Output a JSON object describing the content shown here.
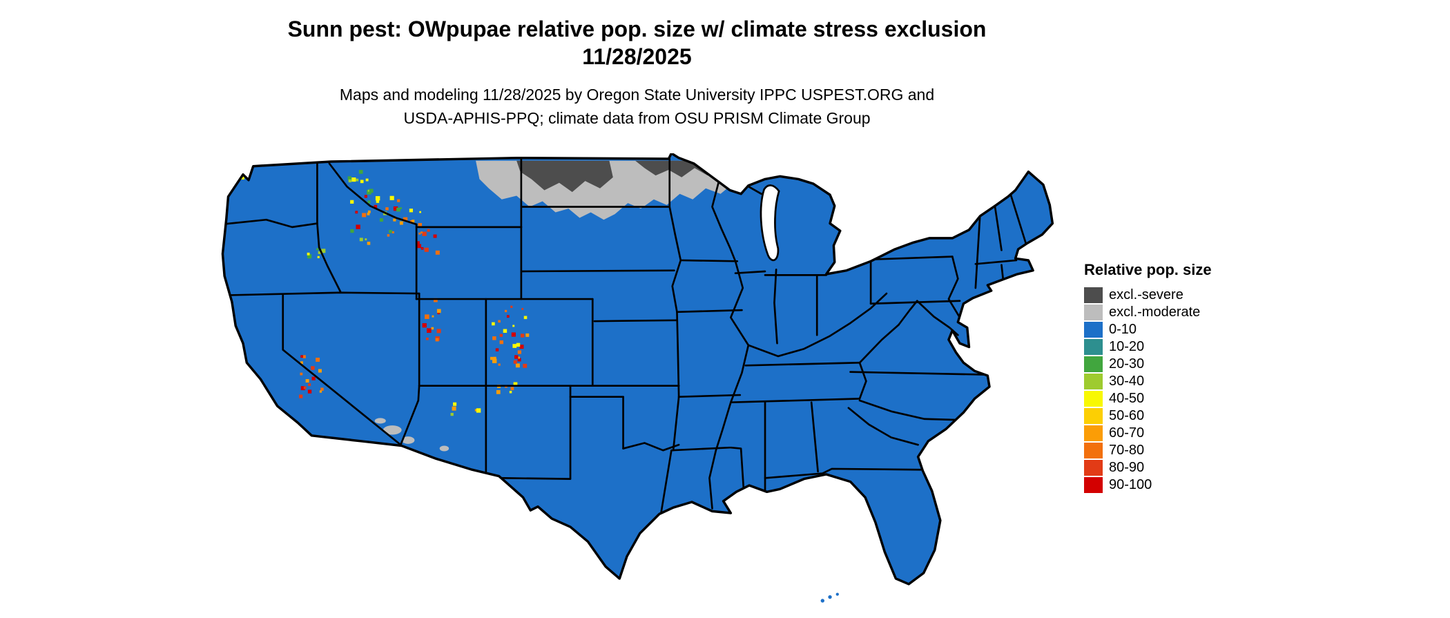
{
  "header": {
    "title_line1": "Sunn pest: OWpupae relative pop. size w/ climate stress exclusion",
    "title_line2": "11/28/2025",
    "subtitle_line1": "Maps and modeling 11/28/2025 by Oregon State University IPPC USPEST.ORG and",
    "subtitle_line2": "USDA-APHIS-PPQ; climate data from OSU PRISM Climate Group"
  },
  "map": {
    "region": "Contiguous United States",
    "base_color": "#1d70c8",
    "border_color": "#000000",
    "exclusion_severe_color": "#4d4d4d",
    "exclusion_moderate_color": "#bdbdbd",
    "water_color": "#ffffff"
  },
  "legend": {
    "title": "Relative pop. size",
    "items": [
      {
        "label": "excl.-severe",
        "color": "#4d4d4d"
      },
      {
        "label": "excl.-moderate",
        "color": "#bdbdbd"
      },
      {
        "label": "0-10",
        "color": "#1d70c8"
      },
      {
        "label": "10-20",
        "color": "#2d8f8f"
      },
      {
        "label": "20-30",
        "color": "#41a63e"
      },
      {
        "label": "30-40",
        "color": "#9ecb2f"
      },
      {
        "label": "40-50",
        "color": "#f8f802"
      },
      {
        "label": "50-60",
        "color": "#fccf03"
      },
      {
        "label": "60-70",
        "color": "#fb9d06"
      },
      {
        "label": "70-80",
        "color": "#f2700d"
      },
      {
        "label": "80-90",
        "color": "#e23b16"
      },
      {
        "label": "90-100",
        "color": "#d30000"
      }
    ]
  }
}
